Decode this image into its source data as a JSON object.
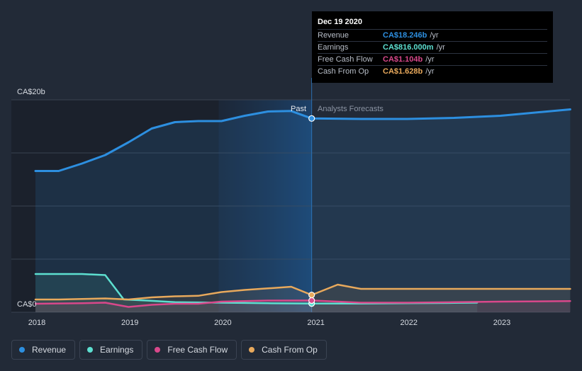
{
  "chart_data": {
    "type": "area",
    "currency_unit": "CA$b",
    "y_top_label": "CA$20b",
    "y_bottom_label": "CA$0",
    "ylim": [
      0,
      20
    ],
    "xlim": [
      2018.0,
      2023.75
    ],
    "x_ticks": [
      2018,
      2019,
      2020,
      2021,
      2022,
      2023
    ],
    "x_tick_labels": [
      "2018",
      "2019",
      "2020",
      "2021",
      "2022",
      "2023"
    ],
    "past_label": "Past",
    "forecast_label": "Analysts Forecasts",
    "divider_x": 2020.97,
    "series": [
      {
        "name": "Revenue",
        "color": "#2d8fe0",
        "x": [
          2018.0,
          2018.25,
          2018.5,
          2018.75,
          2019.0,
          2019.25,
          2019.5,
          2019.75,
          2020.0,
          2020.25,
          2020.5,
          2020.75,
          2020.97,
          2021.5,
          2022.0,
          2022.5,
          2023.0,
          2023.5,
          2023.75
        ],
        "values": [
          13.3,
          13.3,
          14.0,
          14.8,
          16.0,
          17.3,
          17.9,
          18.0,
          18.0,
          18.5,
          18.9,
          18.95,
          18.246,
          18.2,
          18.2,
          18.3,
          18.5,
          18.9,
          19.1
        ]
      },
      {
        "name": "Earnings",
        "color": "#5ddfd0",
        "x": [
          2018.0,
          2018.5,
          2018.75,
          2018.95,
          2019.2,
          2019.5,
          2020.0,
          2020.5,
          2020.97,
          2021.5,
          2022.0,
          2022.5,
          2022.75
        ],
        "values": [
          3.6,
          3.6,
          3.5,
          1.2,
          1.1,
          0.95,
          0.9,
          0.85,
          0.816,
          0.82,
          0.85,
          0.88,
          0.9
        ]
      },
      {
        "name": "Free Cash Flow",
        "color": "#d9488b",
        "x": [
          2018.0,
          2018.5,
          2018.75,
          2019.0,
          2019.25,
          2019.5,
          2019.75,
          2020.0,
          2020.5,
          2020.97,
          2021.25,
          2021.5,
          2022.0,
          2022.5,
          2023.0,
          2023.75
        ],
        "values": [
          0.8,
          0.85,
          0.9,
          0.5,
          0.7,
          0.8,
          0.8,
          1.0,
          1.1,
          1.104,
          1.0,
          0.9,
          0.9,
          0.95,
          1.0,
          1.05
        ]
      },
      {
        "name": "Cash From Op",
        "color": "#e8a95c",
        "x": [
          2018.0,
          2018.25,
          2018.5,
          2018.75,
          2019.0,
          2019.25,
          2019.5,
          2019.75,
          2020.0,
          2020.25,
          2020.5,
          2020.75,
          2020.97,
          2021.25,
          2021.5,
          2022.0,
          2022.5,
          2023.0,
          2023.75
        ],
        "values": [
          1.2,
          1.2,
          1.25,
          1.3,
          1.2,
          1.4,
          1.5,
          1.55,
          1.9,
          2.1,
          2.25,
          2.4,
          1.628,
          2.6,
          2.2,
          2.2,
          2.2,
          2.2,
          2.2
        ]
      }
    ]
  },
  "tooltip": {
    "date": "Dec 19 2020",
    "rows": [
      {
        "label": "Revenue",
        "value": "CA$18.246b",
        "unit": "/yr",
        "color": "#2d8fe0"
      },
      {
        "label": "Earnings",
        "value": "CA$816.000m",
        "unit": "/yr",
        "color": "#5ddfd0"
      },
      {
        "label": "Free Cash Flow",
        "value": "CA$1.104b",
        "unit": "/yr",
        "color": "#d9488b"
      },
      {
        "label": "Cash From Op",
        "value": "CA$1.628b",
        "unit": "/yr",
        "color": "#e8a95c"
      }
    ]
  },
  "legend": [
    {
      "label": "Revenue",
      "color": "#2d8fe0"
    },
    {
      "label": "Earnings",
      "color": "#5ddfd0"
    },
    {
      "label": "Free Cash Flow",
      "color": "#d9488b"
    },
    {
      "label": "Cash From Op",
      "color": "#e8a95c"
    }
  ]
}
